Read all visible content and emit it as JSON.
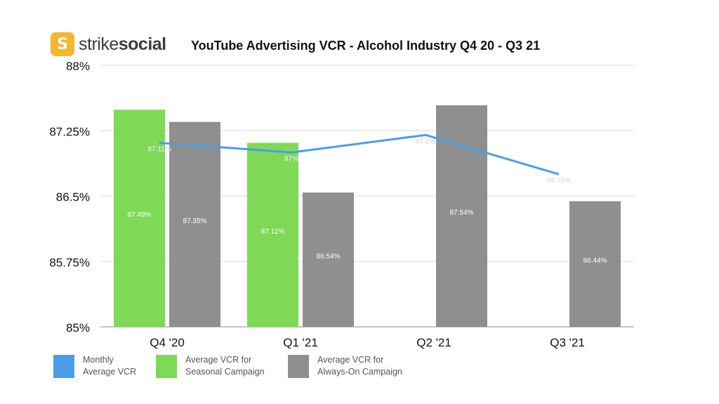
{
  "brand": {
    "mark": "S",
    "name_light": "strike",
    "name_bold": "social"
  },
  "title": "YouTube Advertising VCR - Alcohol Industry Q4 20 - Q3 21",
  "chart_data": {
    "type": "bar",
    "categories": [
      "Q4 '20",
      "Q1 '21",
      "Q2 '21",
      "Q3 '21"
    ],
    "ylim": [
      85,
      88
    ],
    "yticks": [
      85,
      85.75,
      86.5,
      87.25,
      88
    ],
    "ytick_labels": [
      "85%",
      "85.75%",
      "86.5%",
      "87.25%",
      "88%"
    ],
    "grid": true,
    "legend_position": "bottom-left",
    "series": [
      {
        "name": "Monthly Average VCR",
        "kind": "line",
        "color": "#4a9ee8",
        "values": [
          87.11,
          87,
          87.2,
          86.75
        ],
        "labels": [
          "87.11%",
          "87%",
          "87.2%",
          "86.75%"
        ]
      },
      {
        "name": "Average VCR for Seasonal Campaign",
        "kind": "bar",
        "color": "#7ed957",
        "values": [
          87.49,
          87.11,
          null,
          null
        ],
        "labels": [
          "87.49%",
          "87.11%",
          "",
          ""
        ]
      },
      {
        "name": "Average VCR for Always-On Campaign",
        "kind": "bar",
        "color": "#8f8f8f",
        "values": [
          87.35,
          86.54,
          87.54,
          86.44
        ],
        "labels": [
          "87.35%",
          "86.54%",
          "87.54%",
          "86.44%"
        ]
      }
    ]
  },
  "legend": [
    {
      "line1": "Monthly",
      "line2": "Average VCR",
      "color": "#4a9ee8"
    },
    {
      "line1": "Average VCR for",
      "line2": "Seasonal Campaign",
      "color": "#7ed957"
    },
    {
      "line1": "Average VCR for",
      "line2": "Always-On Campaign",
      "color": "#8f8f8f"
    }
  ]
}
